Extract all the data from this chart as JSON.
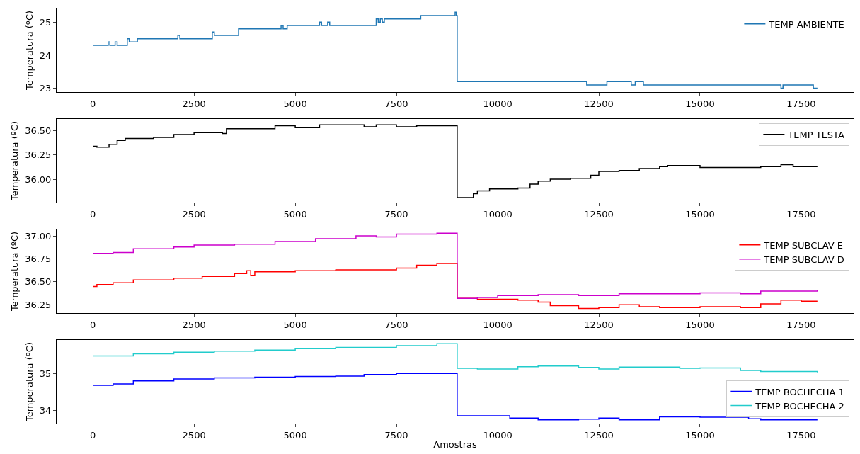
{
  "chart_data": [
    {
      "type": "step",
      "ylabel": "Temperatura (ºC)",
      "xlim": [
        -895,
        18795
      ],
      "xticks": [
        0,
        2500,
        5000,
        7500,
        10000,
        12500,
        15000,
        17500
      ],
      "ylim": [
        22.885,
        25.415
      ],
      "yticks": [
        23,
        24,
        25
      ],
      "legend": "top right",
      "x": [
        0,
        380,
        420,
        550,
        600,
        850,
        900,
        1100,
        2100,
        2150,
        2950,
        3000,
        3600,
        4650,
        4700,
        4800,
        5600,
        5650,
        5800,
        5850,
        7000,
        7050,
        7100,
        7150,
        7200,
        8100,
        8950,
        8980,
        9000,
        12200,
        12700,
        13000,
        13300,
        13400,
        13600,
        13700,
        17000,
        17050,
        17300,
        17800,
        17900
      ],
      "series": [
        {
          "name": "TEMP AMBIENTE",
          "color": "#1f77b4",
          "values": [
            24.3,
            24.4,
            24.3,
            24.4,
            24.3,
            24.5,
            24.4,
            24.5,
            24.6,
            24.5,
            24.7,
            24.6,
            24.8,
            24.9,
            24.8,
            24.9,
            25.0,
            24.9,
            25.0,
            24.9,
            25.1,
            25.0,
            25.1,
            25.0,
            25.1,
            25.2,
            25.3,
            25.2,
            23.2,
            23.1,
            23.2,
            23.2,
            23.1,
            23.2,
            23.1,
            23.1,
            23.0,
            23.1,
            23.1,
            23.0,
            23.0
          ]
        }
      ]
    },
    {
      "type": "step",
      "ylabel": "Temperatura (ºC)",
      "xlim": [
        -895,
        18795
      ],
      "xticks": [
        0,
        2500,
        5000,
        7500,
        10000,
        12500,
        15000,
        17500
      ],
      "ylim": [
        35.76,
        36.62
      ],
      "yticks": [
        {
          "value": 36.0,
          "label": "36.00"
        },
        {
          "value": 36.25,
          "label": "36.25"
        },
        {
          "value": 36.5,
          "label": "36.50"
        }
      ],
      "legend": "top right",
      "x": [
        0,
        100,
        400,
        600,
        800,
        1500,
        2000,
        2500,
        3200,
        3300,
        4500,
        5000,
        5600,
        6700,
        7000,
        7500,
        8000,
        8950,
        9000,
        9400,
        9500,
        9800,
        10500,
        10800,
        11000,
        11300,
        11800,
        12300,
        12500,
        13000,
        13500,
        14000,
        14200,
        15000,
        16000,
        16500,
        17000,
        17300,
        17900
      ],
      "series": [
        {
          "name": "TEMP TESTA",
          "color": "#000000",
          "values": [
            36.34,
            36.33,
            36.36,
            36.4,
            36.42,
            36.43,
            36.46,
            36.48,
            36.47,
            36.52,
            36.55,
            36.53,
            36.56,
            36.54,
            36.56,
            36.54,
            36.55,
            36.55,
            35.81,
            35.85,
            35.88,
            35.9,
            35.91,
            35.95,
            35.98,
            36.0,
            36.01,
            36.04,
            36.08,
            36.09,
            36.11,
            36.13,
            36.14,
            36.12,
            36.12,
            36.13,
            36.15,
            36.13,
            36.13
          ]
        }
      ]
    },
    {
      "type": "step",
      "ylabel": "Temperatura (ºC)",
      "xlim": [
        -895,
        18795
      ],
      "xticks": [
        0,
        2500,
        5000,
        7500,
        10000,
        12500,
        15000,
        17500
      ],
      "ylim": [
        36.16,
        37.07
      ],
      "yticks": [
        {
          "value": 36.25,
          "label": "36.25"
        },
        {
          "value": 36.5,
          "label": "36.50"
        },
        {
          "value": 36.75,
          "label": "36.75"
        },
        {
          "value": 37.0,
          "label": "37.00"
        }
      ],
      "legend": "top right",
      "series": [
        {
          "name": "TEMP SUBCLAV E",
          "color": "#ff0000",
          "x": [
            0,
            100,
            500,
            1000,
            2000,
            2700,
            3500,
            3800,
            3900,
            4000,
            5000,
            6000,
            7000,
            7500,
            8000,
            8500,
            8950,
            9000,
            9500,
            10500,
            11000,
            11300,
            12000,
            12500,
            13000,
            13500,
            14000,
            15000,
            16000,
            16500,
            17000,
            17500,
            17900
          ],
          "values": [
            36.45,
            36.47,
            36.49,
            36.52,
            36.54,
            36.56,
            36.59,
            36.62,
            36.57,
            36.61,
            36.62,
            36.63,
            36.63,
            36.65,
            36.68,
            36.7,
            36.7,
            36.32,
            36.31,
            36.3,
            36.28,
            36.24,
            36.21,
            36.22,
            36.25,
            36.23,
            36.22,
            36.23,
            36.22,
            36.26,
            36.3,
            36.29,
            36.29
          ]
        },
        {
          "name": "TEMP SUBCLAV D",
          "color": "#cc00cc",
          "x": [
            0,
            500,
            1000,
            2000,
            2500,
            3500,
            4500,
            5500,
            6500,
            7000,
            7500,
            8500,
            8950,
            9000,
            9500,
            10000,
            11000,
            12000,
            13000,
            14000,
            15000,
            16000,
            16500,
            17900
          ],
          "values": [
            36.81,
            36.82,
            36.86,
            36.88,
            36.9,
            36.91,
            36.94,
            36.97,
            37.0,
            36.99,
            37.02,
            37.03,
            37.03,
            36.32,
            36.33,
            36.35,
            36.36,
            36.35,
            36.37,
            36.37,
            36.38,
            36.37,
            36.4,
            36.41
          ]
        }
      ]
    },
    {
      "type": "step",
      "ylabel": "Temperatura (ºC)",
      "xlabel": "Amostras",
      "xlim": [
        -895,
        18795
      ],
      "xticks": [
        0,
        2500,
        5000,
        7500,
        10000,
        12500,
        15000,
        17500
      ],
      "ylim": [
        33.65,
        35.9
      ],
      "yticks": [
        34,
        35
      ],
      "legend": "right",
      "series": [
        {
          "name": "TEMP BOCHECHA 1",
          "color": "#0000ff",
          "x": [
            0,
            500,
            1000,
            2000,
            3000,
            4000,
            5000,
            6000,
            6700,
            7500,
            8950,
            9000,
            10300,
            11000,
            12000,
            12500,
            13000,
            14000,
            15000,
            16200,
            16500,
            17900
          ],
          "values": [
            34.68,
            34.72,
            34.8,
            34.85,
            34.88,
            34.9,
            34.92,
            34.93,
            34.97,
            35.0,
            35.0,
            33.86,
            33.8,
            33.75,
            33.77,
            33.8,
            33.75,
            33.83,
            33.82,
            33.78,
            33.75,
            33.75
          ]
        },
        {
          "name": "TEMP BOCHECHA 2",
          "color": "#22cccc",
          "x": [
            0,
            1000,
            2000,
            3000,
            4000,
            5000,
            6000,
            7500,
            8500,
            8950,
            9000,
            9500,
            10500,
            11000,
            12000,
            12500,
            13000,
            14500,
            15000,
            16000,
            16500,
            17900
          ],
          "values": [
            35.47,
            35.53,
            35.57,
            35.6,
            35.63,
            35.67,
            35.7,
            35.75,
            35.8,
            35.8,
            35.14,
            35.12,
            35.18,
            35.2,
            35.16,
            35.12,
            35.17,
            35.14,
            35.15,
            35.08,
            35.05,
            35.03
          ]
        }
      ]
    }
  ]
}
